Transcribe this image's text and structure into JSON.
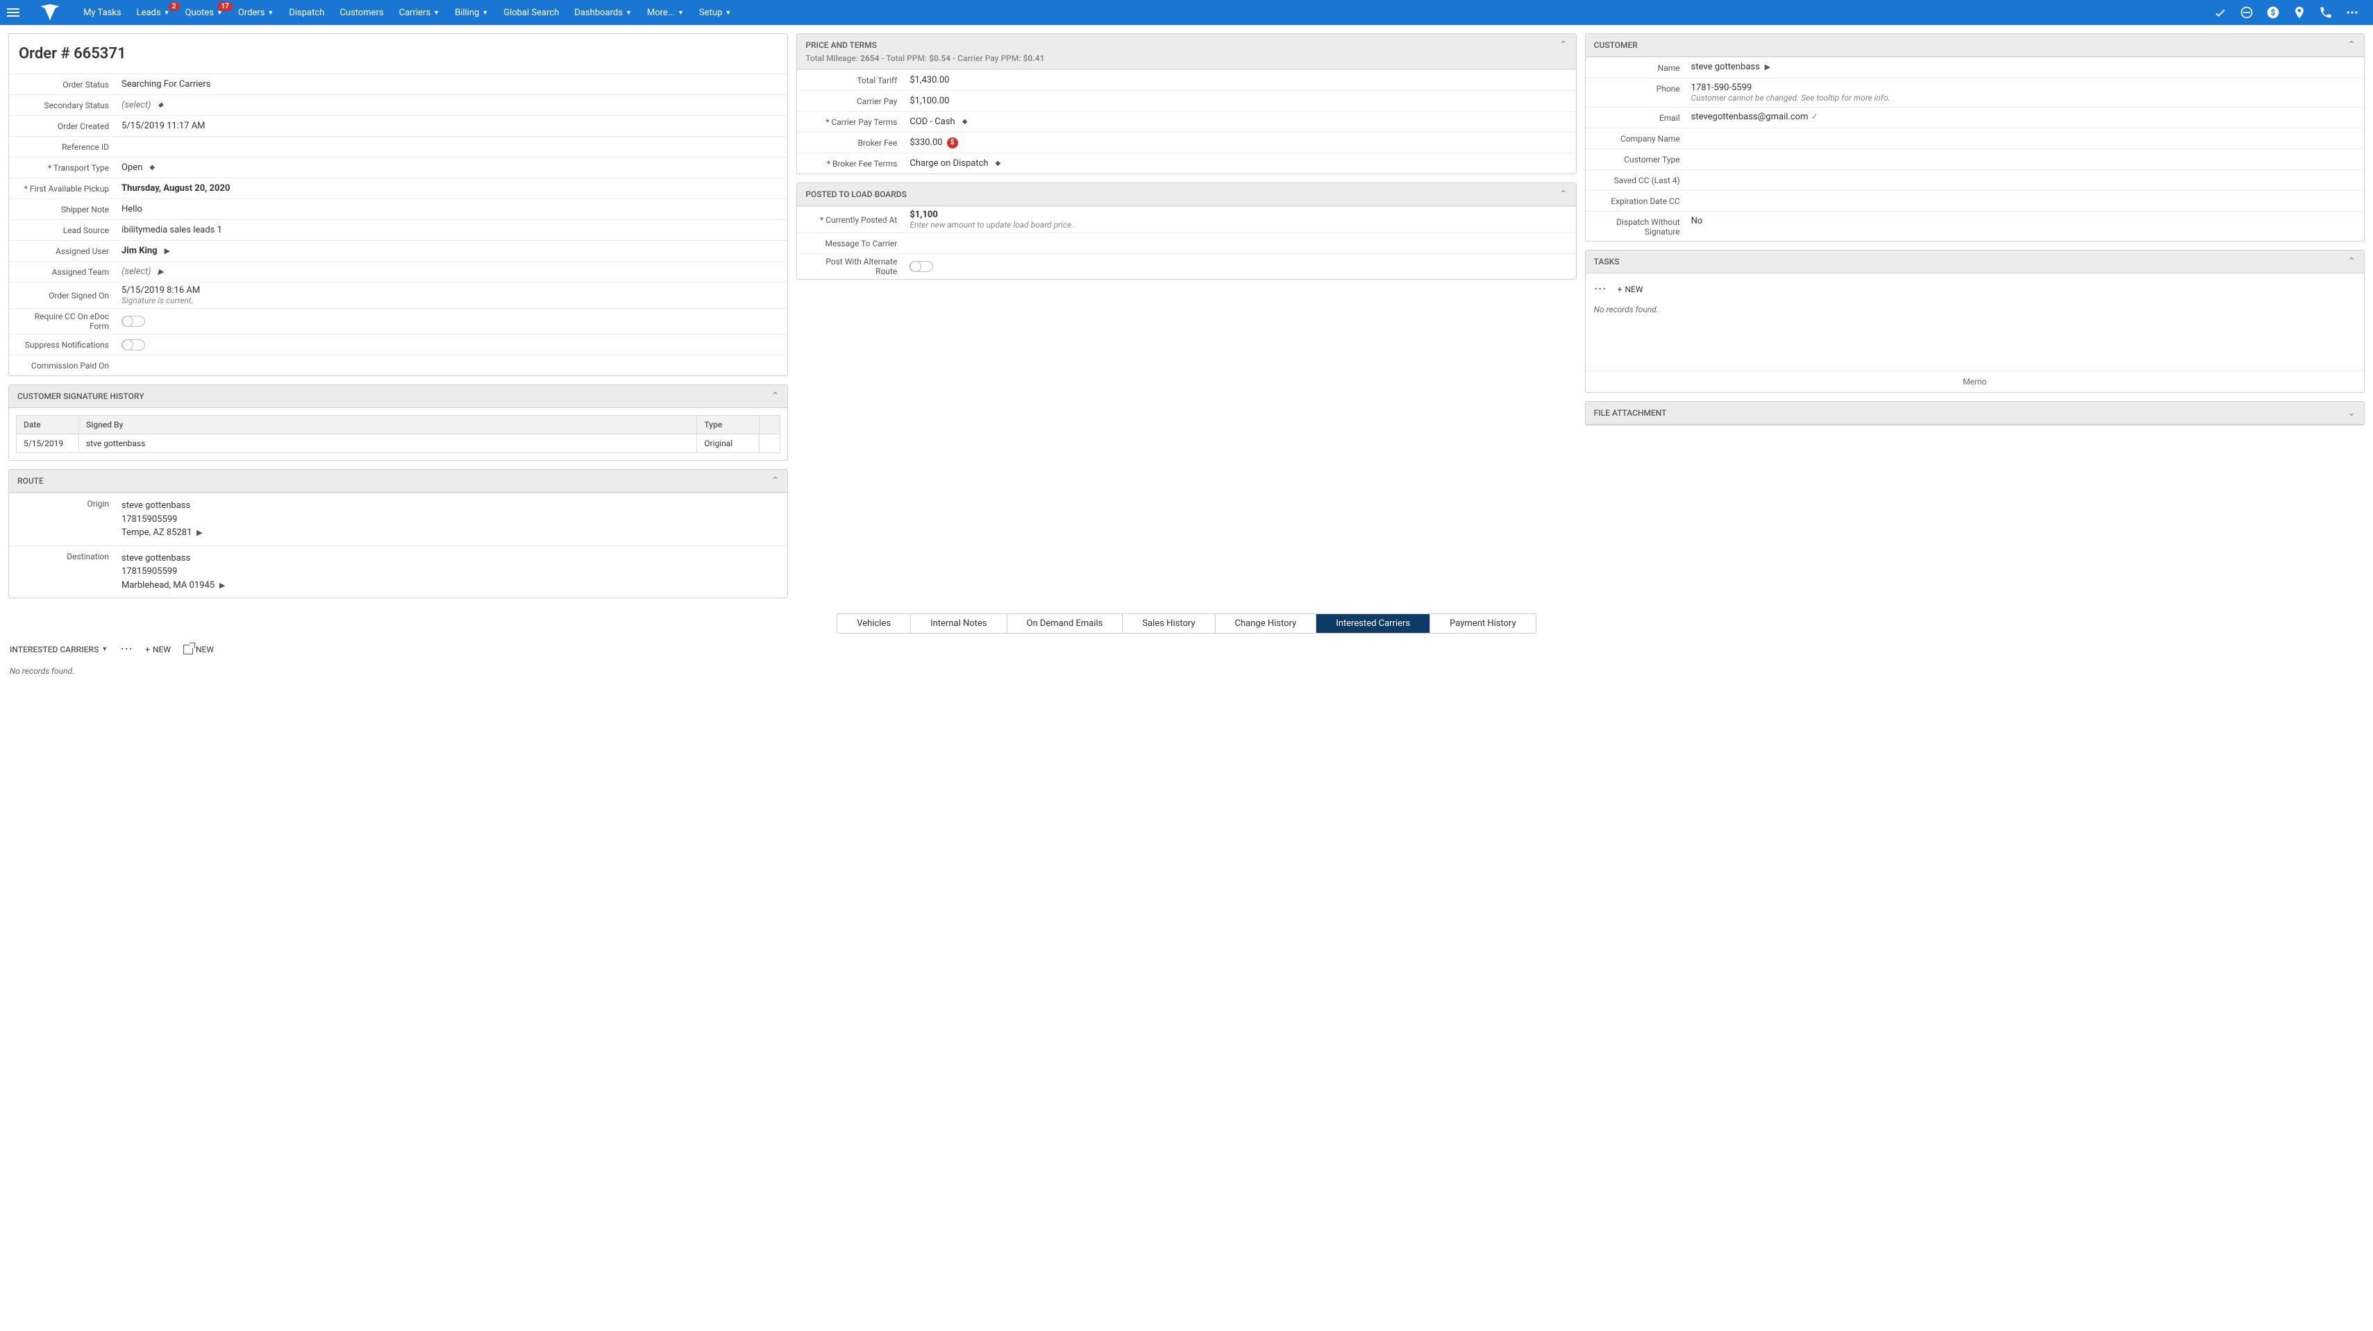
{
  "nav": {
    "items": [
      {
        "label": "My Tasks",
        "dropdown": false
      },
      {
        "label": "Leads",
        "dropdown": true,
        "badge": "2"
      },
      {
        "label": "Quotes",
        "dropdown": true,
        "badge": "17"
      },
      {
        "label": "Orders",
        "dropdown": true
      },
      {
        "label": "Dispatch",
        "dropdown": false
      },
      {
        "label": "Customers",
        "dropdown": false
      },
      {
        "label": "Carriers",
        "dropdown": true
      },
      {
        "label": "Billing",
        "dropdown": true
      },
      {
        "label": "Global Search",
        "dropdown": false
      },
      {
        "label": "Dashboards",
        "dropdown": true
      },
      {
        "label": "More...",
        "dropdown": true
      },
      {
        "label": "Setup",
        "dropdown": true
      }
    ]
  },
  "order": {
    "title": "Order # 665371",
    "fields": {
      "status_label": "Order Status",
      "status_value": "Searching For Carriers",
      "sec_status_label": "Secondary Status",
      "sec_status_value": "(select)",
      "created_label": "Order Created",
      "created_value": "5/15/2019 11:17 AM",
      "ref_label": "Reference ID",
      "ref_value": "",
      "transport_label": "* Transport Type",
      "transport_value": "Open",
      "pickup_label": "* First Available Pickup",
      "pickup_value": "Thursday, August 20, 2020",
      "shipper_note_label": "Shipper Note",
      "shipper_note_value": "Hello",
      "lead_src_label": "Lead Source",
      "lead_src_value": "ibilitymedia sales leads 1",
      "assigned_user_label": "Assigned User",
      "assigned_user_value": "Jim King",
      "assigned_team_label": "Assigned Team",
      "assigned_team_value": "(select)",
      "signed_on_label": "Order Signed On",
      "signed_on_value": "5/15/2019 8:16 AM",
      "signed_on_sub": "Signature is current.",
      "req_cc_label": "Require CC On eDoc Form",
      "suppress_label": "Suppress Notifications",
      "commission_label": "Commission Paid On",
      "commission_value": ""
    }
  },
  "sig": {
    "title": "CUSTOMER SIGNATURE HISTORY",
    "headers": {
      "date": "Date",
      "signed_by": "Signed By",
      "type": "Type"
    },
    "row": {
      "date": "5/15/2019",
      "signed_by": "stve gottenbass",
      "type": "Original"
    }
  },
  "route": {
    "title": "ROUTE",
    "origin_label": "Origin",
    "origin": {
      "name": "steve gottenbass",
      "phone": "17815905599",
      "addr": "Tempe, AZ 85281"
    },
    "dest_label": "Destination",
    "dest": {
      "name": "steve gottenbass",
      "phone": "17815905599",
      "addr": "Marblehead, MA 01945"
    }
  },
  "price": {
    "title": "PRICE AND TERMS",
    "subline_prefix": "Total Mileage: ",
    "mileage": "2654",
    "subline_mid1": " - Total PPM: ",
    "total_ppm": "$0.54",
    "subline_mid2": " - Carrier Pay PPM: ",
    "carrier_ppm": "$0.41",
    "tariff_label": "Total Tariff",
    "tariff_value": "$1,430.00",
    "carrier_pay_label": "Carrier Pay",
    "carrier_pay_value": "$1,100.00",
    "pay_terms_label": "* Carrier Pay Terms",
    "pay_terms_value": "COD - Cash",
    "broker_fee_label": "Broker Fee",
    "broker_fee_value": "$330.00",
    "broker_fee_terms_label": "* Broker Fee Terms",
    "broker_fee_terms_value": "Charge on Dispatch"
  },
  "loadboard": {
    "title": "POSTED TO LOAD BOARDS",
    "posted_at_label": "* Currently Posted At",
    "posted_at_value": "$1,100",
    "posted_at_hint": "Enter new amount to update load board price.",
    "msg_label": "Message To Carrier",
    "alt_route_label": "Post With Alternate Route"
  },
  "customer": {
    "title": "CUSTOMER",
    "name_label": "Name",
    "name_value": "steve gottenbass",
    "phone_label": "Phone",
    "phone_value": "1781-590-5599",
    "phone_hint": "Customer cannot be changed. See tooltip for more info.",
    "email_label": "Email",
    "email_value": "stevegottenbass@gmail.com",
    "company_label": "Company Name",
    "company_value": "",
    "type_label": "Customer Type",
    "type_value": "",
    "cc_label": "Saved CC (Last 4)",
    "cc_value": "",
    "exp_label": "Expiration Date CC",
    "exp_value": "",
    "dispatch_sig_label": "Dispatch Without Signature",
    "dispatch_sig_value": "No"
  },
  "tasks": {
    "title": "TASKS",
    "new_label": "NEW",
    "no_records": "No records found.",
    "memo_label": "Memo"
  },
  "file_attach": {
    "title": "FILE ATTACHMENT"
  },
  "tabs": [
    {
      "label": "Vehicles"
    },
    {
      "label": "Internal Notes"
    },
    {
      "label": "On Demand Emails"
    },
    {
      "label": "Sales History"
    },
    {
      "label": "Change History"
    },
    {
      "label": "Interested Carriers",
      "active": true
    },
    {
      "label": "Payment History"
    }
  ],
  "bottom": {
    "title": "INTERESTED CARRIERS",
    "new_label": "NEW",
    "no_records": "No records found."
  },
  "colors": {
    "nav_bg": "#1976d2",
    "badge_bg": "#d32f2f",
    "panel_header_bg": "#ececec",
    "border": "#d0d0d0",
    "tab_active_bg": "#0d3b66"
  }
}
